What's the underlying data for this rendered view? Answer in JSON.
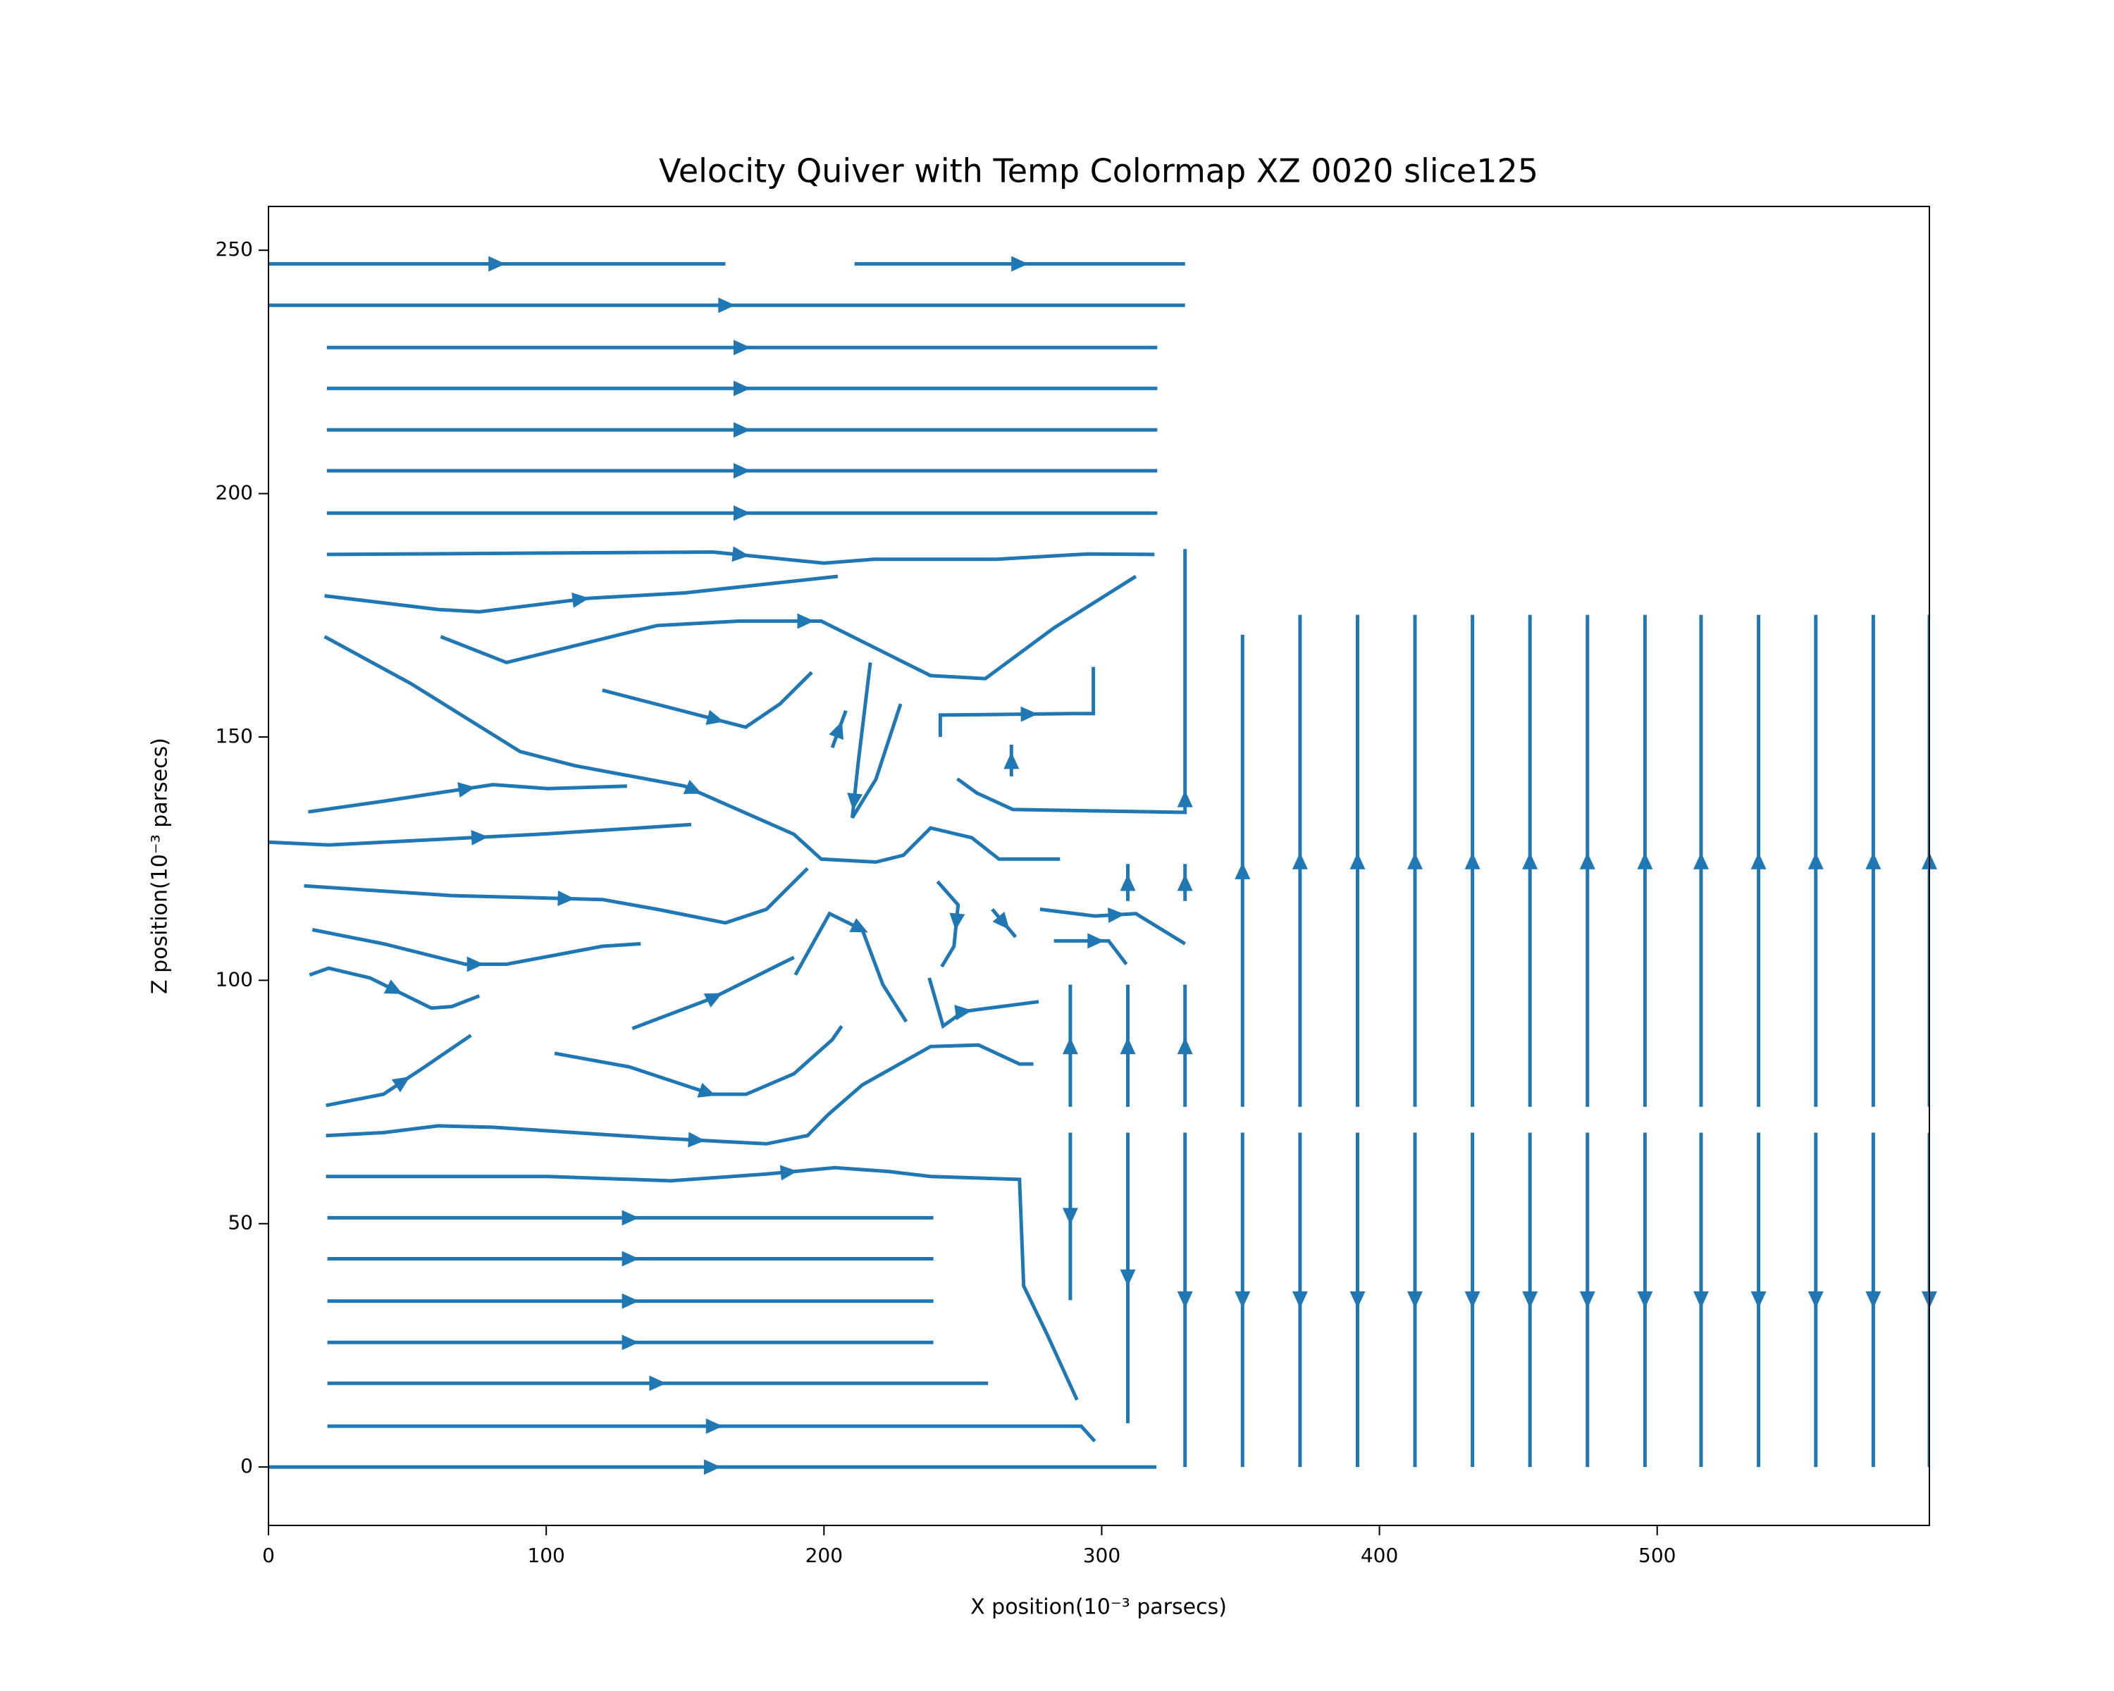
{
  "chart_data": {
    "type": "streamplot",
    "title": "Velocity Quiver with Temp Colormap XZ 0020 slice125",
    "xlabel": "X position(10⁻³ parsecs)",
    "ylabel": "Z position(10⁻³ parsecs)",
    "color": "#1f77b4",
    "xlim": [
      0,
      598
    ],
    "ylim": [
      -12,
      259
    ],
    "xticks": [
      0,
      100,
      200,
      300,
      400,
      500
    ],
    "yticks": [
      0,
      50,
      100,
      150,
      200,
      250
    ],
    "grid": false,
    "streamlines": [
      {
        "x": [
          0,
          164.5
        ],
        "y": [
          247.2,
          247.2
        ]
      },
      {
        "x": [
          211,
          330
        ],
        "y": [
          247.2,
          247.2
        ]
      },
      {
        "x": [
          0,
          330
        ],
        "y": [
          238.7,
          238.7
        ]
      },
      {
        "x": [
          21,
          320
        ],
        "y": [
          230,
          230
        ]
      },
      {
        "x": [
          21,
          320
        ],
        "y": [
          221.6,
          221.6
        ]
      },
      {
        "x": [
          21,
          320
        ],
        "y": [
          213.1,
          213.1
        ]
      },
      {
        "x": [
          21,
          320
        ],
        "y": [
          204.7,
          204.7
        ]
      },
      {
        "x": [
          21,
          320
        ],
        "y": [
          196,
          196
        ]
      },
      {
        "x": [
          21,
          160,
          200,
          218,
          262,
          295,
          319
        ],
        "y": [
          187.5,
          188,
          185.7,
          186.5,
          186.5,
          187.6,
          187.5
        ]
      },
      {
        "x": [
          248,
          255,
          268,
          330,
          330
        ],
        "y": [
          141.4,
          138.5,
          135.1,
          134.5,
          188.6
        ]
      },
      {
        "x": [
          20.2,
          61,
          75.9,
          115.3,
          149.8,
          205
        ],
        "y": [
          179,
          176.2,
          175.7,
          178.5,
          179.6,
          183
        ]
      },
      {
        "x": [
          20.2,
          51.2,
          90.6,
          110.3,
          149.8,
          189.2,
          199,
          218.7,
          228.6,
          238.4,
          253.2,
          263,
          285
        ],
        "y": [
          170.6,
          161,
          147,
          144.1,
          139.9,
          130,
          124.9,
          124.3,
          125.7,
          131.3,
          129.3,
          124.9,
          124.9
        ]
      },
      {
        "x": [
          62,
          85.7,
          139.9,
          169.5,
          199,
          208.9,
          238.4,
          258.1,
          282.8,
          312.3
        ],
        "y": [
          170.6,
          165.3,
          172.9,
          173.8,
          173.8,
          171,
          162.6,
          162,
          172.4,
          183
        ]
      },
      {
        "x": [
          120.2,
          171.8,
          184.2,
          195.6
        ],
        "y": [
          159.6,
          152,
          156.8,
          163.3
        ]
      },
      {
        "x": [
          203,
          207.9
        ],
        "y": [
          147.8,
          155.4
        ]
      },
      {
        "x": [
          216.7,
          212.2,
          210.2,
          218.7,
          227.6
        ],
        "y": [
          165.3,
          144.1,
          133.4,
          141.3,
          156.8
        ]
      },
      {
        "x": [
          241.9,
          241.9,
          290,
          297,
          297
        ],
        "y": [
          150,
          154.5,
          154.8,
          154.8,
          164.4
        ]
      },
      {
        "x": [
          267.5,
          267.5
        ],
        "y": [
          141.9,
          148.4
        ]
      },
      {
        "x": [
          14.3,
          41.4,
          80.8,
          100.5,
          129.1
        ],
        "y": [
          134.6,
          136.8,
          140.2,
          139.4,
          139.9
        ]
      },
      {
        "x": [
          0,
          21.7,
          100.5,
          152.2
        ],
        "y": [
          128.4,
          127.8,
          130.1,
          132
        ]
      },
      {
        "x": [
          12.8,
          66,
          120.2,
          139.9,
          164.5,
          179.3,
          194.1
        ],
        "y": [
          119.4,
          117.4,
          116.6,
          114.6,
          111.8,
          114.6,
          123
        ]
      },
      {
        "x": [
          15.8,
          41.4,
          70.9,
          85.7,
          120.2,
          134
        ],
        "y": [
          110.4,
          107.5,
          103.3,
          103.3,
          107,
          107.5
        ]
      },
      {
        "x": [
          14.8,
          21.7,
          36.5,
          58.6,
          66,
          75.9
        ],
        "y": [
          101.1,
          102.5,
          100.5,
          94.3,
          94.6,
          96.8
        ]
      },
      {
        "x": [
          20.7,
          41.4,
          56.2,
          72.9
        ],
        "y": [
          74.3,
          76.6,
          82.2,
          88.7
        ]
      },
      {
        "x": [
          131,
          159.6,
          184.2,
          189.2
        ],
        "y": [
          90.1,
          96.3,
          103.3,
          104.7
        ]
      },
      {
        "x": [
          103,
          130,
          159.6,
          172,
          189.2,
          203,
          206.4
        ],
        "y": [
          85,
          82.2,
          76.6,
          76.6,
          80.8,
          87.8,
          90.6
        ]
      },
      {
        "x": [
          20.7,
          41.4,
          61.1,
          80.8,
          139.9,
          179.3,
          194.1,
          201.5,
          213.8,
          238.4,
          255.7,
          270.4,
          275.4
        ],
        "y": [
          68.1,
          68.7,
          70.1,
          69.8,
          67.6,
          66.4,
          68.1,
          72.4,
          78.5,
          86.4,
          86.7,
          82.8,
          82.8
        ]
      },
      {
        "x": [
          20.7,
          100.5,
          144.8,
          179.3,
          203.9,
          223.6,
          238.4,
          270.4,
          271.9,
          280.3,
          291.1
        ],
        "y": [
          59.7,
          59.7,
          58.8,
          60.2,
          61.5,
          60.7,
          59.7,
          59.1,
          37.2,
          27.3,
          13.8
        ]
      },
      {
        "x": [
          21.2,
          239.4
        ],
        "y": [
          51.2,
          51.2
        ]
      },
      {
        "x": [
          21.2,
          239.4
        ],
        "y": [
          42.8,
          42.8
        ]
      },
      {
        "x": [
          21.2,
          239.4
        ],
        "y": [
          34.1,
          34.1
        ]
      },
      {
        "x": [
          21.2,
          239.4
        ],
        "y": [
          25.6,
          25.6
        ]
      },
      {
        "x": [
          21.2,
          259.1
        ],
        "y": [
          17.2,
          17.2
        ]
      },
      {
        "x": [
          21.2,
          292.6,
          297.5
        ],
        "y": [
          8.4,
          8.4,
          5.3
        ]
      },
      {
        "x": [
          0,
          319.7
        ],
        "y": [
          0,
          0
        ]
      },
      {
        "x": [
          189.7,
          202,
          213.8,
          221.2,
          229.6
        ],
        "y": [
          101.1,
          113.7,
          110.4,
          99.1,
          91.5
        ]
      },
      {
        "x": [
          240.9,
          248.3,
          246.8,
          242.4
        ],
        "y": [
          120.3,
          115.5,
          107,
          102.8
        ]
      },
      {
        "x": [
          237.9,
          242.9,
          250.2,
          277.3
        ],
        "y": [
          100.5,
          90.6,
          93.6,
          95.6
        ]
      },
      {
        "x": [
          260.6,
          269
        ],
        "y": [
          114.6,
          108.9
        ]
      },
      {
        "x": [
          282.8,
          302.5,
          308.9
        ],
        "y": [
          108.1,
          108.1,
          103.3
        ]
      },
      {
        "x": [
          277.8,
          297.5,
          312.3,
          330
        ],
        "y": [
          114.6,
          113.2,
          113.7,
          107.5
        ]
      },
      {
        "x": [
          288.7,
          288.7
        ],
        "y": [
          74,
          99.1
        ]
      },
      {
        "x": [
          288.7,
          288.7
        ],
        "y": [
          68.7,
          34.3
        ]
      },
      {
        "x": [
          309.4,
          309.4
        ],
        "y": [
          116.3,
          123.9
        ]
      },
      {
        "x": [
          309.4,
          309.4
        ],
        "y": [
          74,
          99.1
        ]
      },
      {
        "x": [
          309.4,
          309.4
        ],
        "y": [
          68.7,
          9
        ]
      },
      {
        "x": [
          330,
          330
        ],
        "y": [
          116.3,
          123.9
        ]
      },
      {
        "x": [
          330,
          330
        ],
        "y": [
          74,
          99.1
        ]
      },
      {
        "x": [
          330,
          330
        ],
        "y": [
          68.7,
          0
        ]
      },
      {
        "x": [
          350.7,
          350.7
        ],
        "y": [
          74,
          171
        ]
      },
      {
        "x": [
          350.7,
          350.7
        ],
        "y": [
          68.7,
          0
        ]
      },
      {
        "x": [
          371.4,
          371.4
        ],
        "y": [
          74,
          175.1
        ]
      },
      {
        "x": [
          371.4,
          371.4
        ],
        "y": [
          68.7,
          0
        ]
      },
      {
        "x": [
          392.1,
          392.1
        ],
        "y": [
          74,
          175.1
        ]
      },
      {
        "x": [
          392.1,
          392.1
        ],
        "y": [
          68.7,
          0
        ]
      },
      {
        "x": [
          412.8,
          412.8
        ],
        "y": [
          74,
          175.1
        ]
      },
      {
        "x": [
          412.8,
          412.8
        ],
        "y": [
          68.7,
          0
        ]
      },
      {
        "x": [
          433.5,
          433.5
        ],
        "y": [
          74,
          175.1
        ]
      },
      {
        "x": [
          433.5,
          433.5
        ],
        "y": [
          68.7,
          0
        ]
      },
      {
        "x": [
          454.2,
          454.2
        ],
        "y": [
          74,
          175.1
        ]
      },
      {
        "x": [
          454.2,
          454.2
        ],
        "y": [
          68.7,
          0
        ]
      },
      {
        "x": [
          474.9,
          474.9
        ],
        "y": [
          74,
          175.1
        ]
      },
      {
        "x": [
          474.9,
          474.9
        ],
        "y": [
          68.7,
          0
        ]
      },
      {
        "x": [
          495.6,
          495.6
        ],
        "y": [
          74,
          175.1
        ]
      },
      {
        "x": [
          495.6,
          495.6
        ],
        "y": [
          68.7,
          0
        ]
      },
      {
        "x": [
          515.8,
          515.8
        ],
        "y": [
          74,
          175.1
        ]
      },
      {
        "x": [
          515.8,
          515.8
        ],
        "y": [
          68.7,
          0
        ]
      },
      {
        "x": [
          536.5,
          536.5
        ],
        "y": [
          74,
          175.1
        ]
      },
      {
        "x": [
          536.5,
          536.5
        ],
        "y": [
          68.7,
          0
        ]
      },
      {
        "x": [
          557.1,
          557.1
        ],
        "y": [
          74,
          175.1
        ]
      },
      {
        "x": [
          557.1,
          557.1
        ],
        "y": [
          68.7,
          0
        ]
      },
      {
        "x": [
          577.8,
          577.8
        ],
        "y": [
          74,
          175.1
        ]
      },
      {
        "x": [
          577.8,
          577.8
        ],
        "y": [
          68.7,
          0
        ]
      },
      {
        "x": [
          598,
          598
        ],
        "y": [
          74,
          175.1
        ]
      },
      {
        "x": [
          598,
          598
        ],
        "y": [
          68.7,
          0
        ]
      }
    ]
  }
}
